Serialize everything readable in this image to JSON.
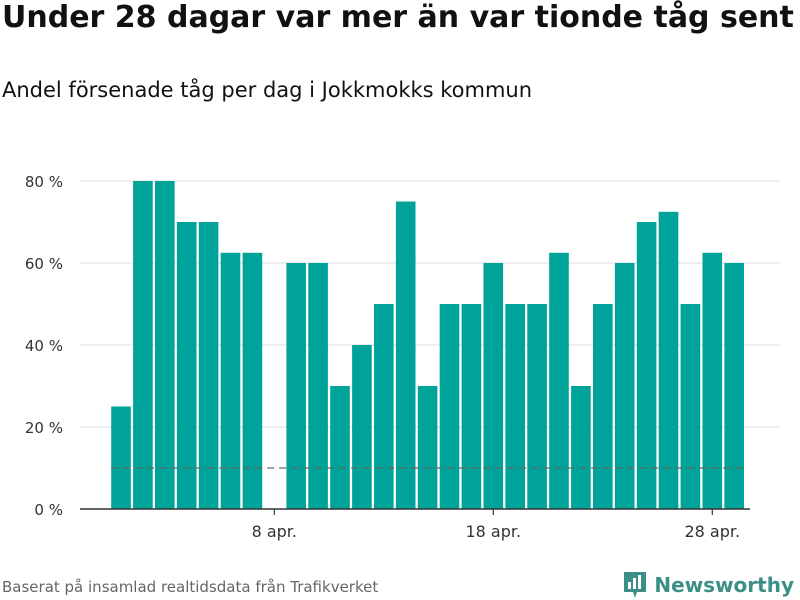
{
  "header": {
    "title": "Under 28 dagar var mer än var tionde tåg sent",
    "subtitle": "Andel försenade tåg per dag i Jokkmokks kommun"
  },
  "footer": {
    "source": "Baserat på insamlad realtidsdata från Trafikverket",
    "brand": "Newsworthy"
  },
  "colors": {
    "bar": "#00a39a",
    "grid": "#dddddd",
    "threshold": "#666666",
    "brand": "#3b8f86"
  },
  "chart_data": {
    "type": "bar",
    "title": "Under 28 dagar var mer än var tionde tåg sent",
    "subtitle": "Andel försenade tåg per dag i Jokkmokks kommun",
    "xlabel": "",
    "ylabel": "",
    "ylim": [
      0,
      80
    ],
    "yticks": [
      0,
      20,
      40,
      60,
      80
    ],
    "ytick_labels": [
      "0 %",
      "20 %",
      "40 %",
      "60 %",
      "80 %"
    ],
    "grid": true,
    "x_day_range": [
      1,
      30
    ],
    "day_values": [
      {
        "day": 1,
        "value": 25
      },
      {
        "day": 2,
        "value": 80
      },
      {
        "day": 3,
        "value": 80
      },
      {
        "day": 4,
        "value": 70
      },
      {
        "day": 5,
        "value": 70
      },
      {
        "day": 6,
        "value": 62.5
      },
      {
        "day": 7,
        "value": 62.5
      },
      {
        "day": 8,
        "value": 0
      },
      {
        "day": 9,
        "value": 60
      },
      {
        "day": 10,
        "value": 60
      },
      {
        "day": 11,
        "value": 30
      },
      {
        "day": 12,
        "value": 40
      },
      {
        "day": 13,
        "value": 50
      },
      {
        "day": 14,
        "value": 75
      },
      {
        "day": 15,
        "value": 30
      },
      {
        "day": 16,
        "value": 50
      },
      {
        "day": 17,
        "value": 50
      },
      {
        "day": 18,
        "value": 60
      },
      {
        "day": 19,
        "value": 50
      },
      {
        "day": 20,
        "value": 50
      },
      {
        "day": 21,
        "value": 62.5
      },
      {
        "day": 22,
        "value": 30
      },
      {
        "day": 23,
        "value": 50
      },
      {
        "day": 24,
        "value": 60
      },
      {
        "day": 25,
        "value": 70
      },
      {
        "day": 26,
        "value": 72.5
      },
      {
        "day": 27,
        "value": 50
      },
      {
        "day": 28,
        "value": 62.5
      },
      {
        "day": 29,
        "value": 60
      }
    ],
    "xticks": [
      {
        "day": 8,
        "label": "8 apr."
      },
      {
        "day": 18,
        "label": "18 apr."
      },
      {
        "day": 28,
        "label": "28 apr."
      }
    ],
    "threshold": 10
  }
}
